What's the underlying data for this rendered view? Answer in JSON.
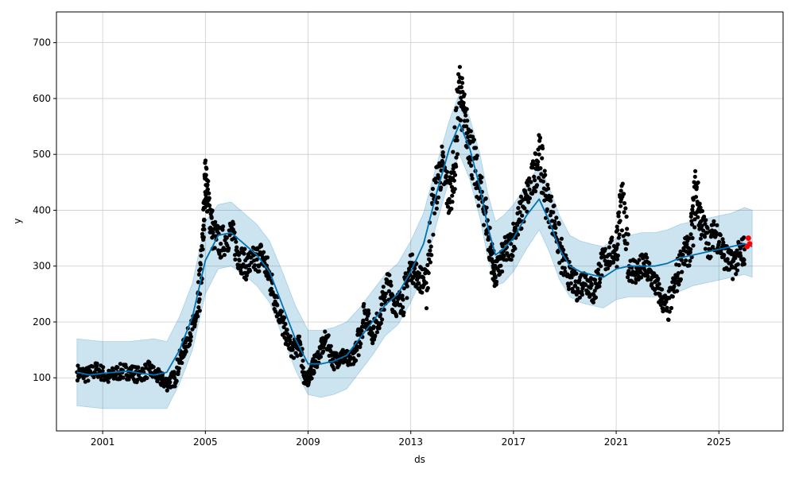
{
  "chart_data": {
    "type": "line",
    "title": "",
    "xlabel": "ds",
    "ylabel": "y",
    "xlim": [
      1999.2,
      2027.5
    ],
    "ylim": [
      5,
      755
    ],
    "x_ticks": [
      2001,
      2005,
      2009,
      2013,
      2017,
      2021,
      2025
    ],
    "y_ticks": [
      100,
      200,
      300,
      400,
      500,
      600,
      700
    ],
    "grid": true,
    "legend": "none",
    "colors": {
      "forecast": "#0072B2",
      "band": "#0072B2",
      "observed": "#000000",
      "highlight": "#ff0000",
      "grid": "#cccccc"
    },
    "series": [
      {
        "kind": "observed-points",
        "x": [
          2000.0,
          2000.4,
          2000.8,
          2001.2,
          2001.6,
          2002.0,
          2002.4,
          2002.8,
          2003.2,
          2003.5,
          2003.8,
          2004.1,
          2004.4,
          2004.7,
          2004.9,
          2005.0,
          2005.1,
          2005.3,
          2005.6,
          2006.0,
          2006.3,
          2006.6,
          2006.9,
          2007.2,
          2007.5,
          2007.8,
          2008.1,
          2008.4,
          2008.7,
          2008.9,
          2009.1,
          2009.4,
          2009.7,
          2010.0,
          2010.3,
          2010.6,
          2010.9,
          2011.2,
          2011.5,
          2011.8,
          2012.1,
          2012.4,
          2012.7,
          2013.0,
          2013.3,
          2013.6,
          2013.9,
          2014.2,
          2014.5,
          2014.7,
          2014.9,
          2015.1,
          2015.3,
          2015.6,
          2015.9,
          2016.1,
          2016.3,
          2016.6,
          2016.9,
          2017.2,
          2017.5,
          2017.8,
          2018.0,
          2018.3,
          2018.6,
          2018.9,
          2019.2,
          2019.5,
          2019.8,
          2020.1,
          2020.4,
          2020.7,
          2021.0,
          2021.2,
          2021.5,
          2021.8,
          2022.1,
          2022.4,
          2022.7,
          2023.0,
          2023.3,
          2023.6,
          2023.9,
          2024.1,
          2024.3,
          2024.6,
          2024.9,
          2025.2,
          2025.5,
          2025.8,
          2026.0
        ],
        "y": [
          110,
          105,
          115,
          100,
          110,
          112,
          105,
          115,
          100,
          90,
          100,
          145,
          180,
          210,
          330,
          460,
          420,
          360,
          340,
          360,
          320,
          300,
          310,
          320,
          280,
          230,
          180,
          150,
          160,
          90,
          110,
          140,
          170,
          130,
          140,
          130,
          150,
          220,
          180,
          210,
          270,
          230,
          240,
          300,
          280,
          270,
          420,
          480,
          420,
          480,
          620,
          560,
          520,
          450,
          400,
          330,
          280,
          320,
          340,
          380,
          420,
          460,
          500,
          420,
          380,
          310,
          280,
          260,
          280,
          250,
          300,
          320,
          330,
          420,
          300,
          290,
          300,
          280,
          250,
          220,
          270,
          320,
          330,
          440,
          380,
          340,
          360,
          320,
          300,
          320,
          330
        ]
      },
      {
        "kind": "highlight-points",
        "x": [
          2026.1,
          2026.15,
          2026.2
        ],
        "y": [
          335,
          350,
          340
        ]
      },
      {
        "kind": "forecast-line",
        "x": [
          2000.0,
          2000.5,
          2001.0,
          2001.5,
          2002.0,
          2002.5,
          2003.0,
          2003.5,
          2004.0,
          2004.5,
          2005.0,
          2005.5,
          2006.0,
          2006.5,
          2007.0,
          2007.5,
          2008.0,
          2008.5,
          2009.0,
          2009.5,
          2010.0,
          2010.5,
          2011.0,
          2011.5,
          2012.0,
          2012.5,
          2013.0,
          2013.5,
          2014.0,
          2014.5,
          2014.9,
          2015.3,
          2015.7,
          2016.0,
          2016.3,
          2016.6,
          2017.0,
          2017.5,
          2018.0,
          2018.4,
          2018.8,
          2019.2,
          2019.6,
          2020.0,
          2020.5,
          2021.0,
          2021.5,
          2022.0,
          2022.5,
          2023.0,
          2023.5,
          2024.0,
          2024.5,
          2025.0,
          2025.5,
          2026.0,
          2026.3
        ],
        "y": [
          110,
          105,
          108,
          110,
          112,
          108,
          105,
          110,
          150,
          210,
          310,
          355,
          360,
          340,
          320,
          290,
          230,
          170,
          125,
          125,
          130,
          140,
          170,
          200,
          230,
          250,
          290,
          340,
          430,
          510,
          555,
          510,
          440,
          370,
          320,
          330,
          350,
          390,
          420,
          380,
          330,
          300,
          290,
          285,
          280,
          295,
          300,
          300,
          300,
          305,
          315,
          320,
          325,
          330,
          335,
          340,
          335
        ]
      },
      {
        "kind": "uncertainty-band",
        "x": [
          2000.0,
          2001.0,
          2002.0,
          2003.0,
          2003.5,
          2004.0,
          2004.5,
          2005.0,
          2005.5,
          2006.0,
          2006.5,
          2007.0,
          2007.5,
          2008.0,
          2008.5,
          2009.0,
          2009.5,
          2010.0,
          2010.5,
          2011.0,
          2011.5,
          2012.0,
          2012.5,
          2013.0,
          2013.5,
          2014.0,
          2014.5,
          2014.9,
          2015.3,
          2015.7,
          2016.0,
          2016.3,
          2016.6,
          2017.0,
          2017.5,
          2018.0,
          2018.4,
          2018.8,
          2019.2,
          2019.6,
          2020.0,
          2020.5,
          2021.0,
          2021.5,
          2022.0,
          2022.5,
          2023.0,
          2023.5,
          2024.0,
          2024.5,
          2025.0,
          2025.5,
          2026.0,
          2026.3
        ],
        "upper": [
          170,
          165,
          165,
          170,
          165,
          210,
          270,
          380,
          410,
          415,
          395,
          375,
          345,
          290,
          230,
          185,
          185,
          190,
          200,
          225,
          255,
          285,
          305,
          345,
          395,
          480,
          560,
          610,
          565,
          500,
          430,
          380,
          390,
          410,
          445,
          480,
          440,
          390,
          355,
          345,
          340,
          335,
          350,
          355,
          360,
          360,
          365,
          375,
          380,
          385,
          390,
          395,
          405,
          400
        ],
        "lower": [
          50,
          45,
          45,
          45,
          45,
          90,
          150,
          250,
          295,
          300,
          285,
          265,
          235,
          175,
          115,
          70,
          65,
          70,
          80,
          110,
          140,
          175,
          195,
          235,
          285,
          375,
          455,
          500,
          455,
          385,
          315,
          265,
          270,
          290,
          330,
          365,
          325,
          275,
          245,
          235,
          230,
          225,
          240,
          245,
          245,
          245,
          250,
          255,
          265,
          270,
          275,
          280,
          285,
          280
        ]
      }
    ]
  }
}
